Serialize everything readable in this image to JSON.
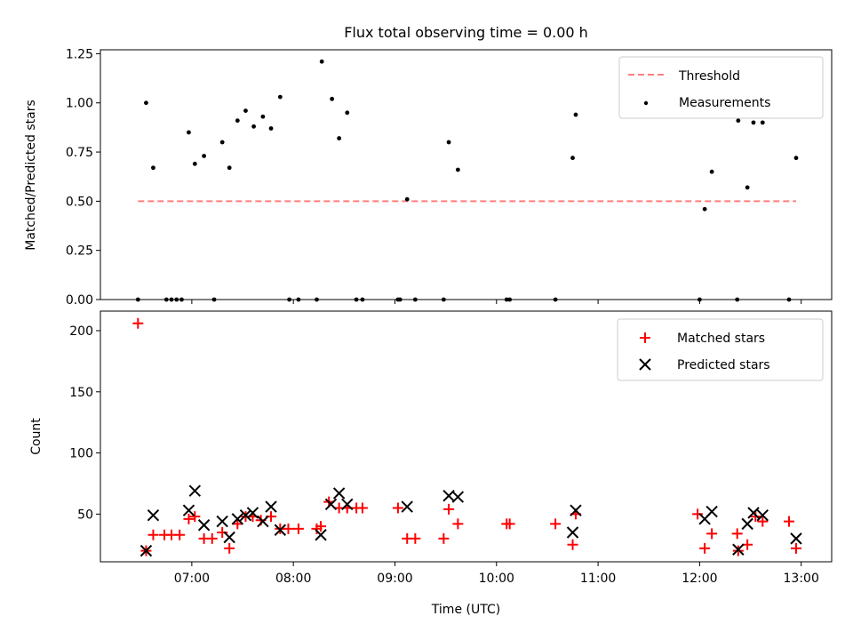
{
  "chart_data": [
    {
      "type": "scatter",
      "title": "Flux total observing time = 0.00 h",
      "xlabel": "",
      "ylabel": "Matched/Predicted stars",
      "ylim": [
        0,
        1.27
      ],
      "yticks": [
        "0.00",
        "0.25",
        "0.50",
        "0.75",
        "1.00",
        "1.25"
      ],
      "xlim_hours": [
        6.1,
        13.3
      ],
      "legend_position": "top-right",
      "threshold": {
        "name": "Threshold",
        "value": 0.5,
        "x_start": 6.47,
        "x_end": 12.95,
        "color": "#ff7f7f"
      },
      "series": [
        {
          "name": "Measurements",
          "color": "#000000",
          "points": [
            [
              6.47,
              0
            ],
            [
              6.55,
              1.0
            ],
            [
              6.62,
              0.67
            ],
            [
              6.75,
              0
            ],
            [
              6.8,
              0
            ],
            [
              6.85,
              0
            ],
            [
              6.9,
              0
            ],
            [
              6.97,
              0.85
            ],
            [
              7.03,
              0.69
            ],
            [
              7.12,
              0.73
            ],
            [
              7.22,
              0
            ],
            [
              7.3,
              0.8
            ],
            [
              7.37,
              0.67
            ],
            [
              7.45,
              0.91
            ],
            [
              7.53,
              0.96
            ],
            [
              7.61,
              0.88
            ],
            [
              7.7,
              0.93
            ],
            [
              7.78,
              0.87
            ],
            [
              7.87,
              1.03
            ],
            [
              7.96,
              0
            ],
            [
              8.05,
              0
            ],
            [
              8.23,
              0
            ],
            [
              8.28,
              1.21
            ],
            [
              8.38,
              1.02
            ],
            [
              8.45,
              0.82
            ],
            [
              8.53,
              0.95
            ],
            [
              8.62,
              0
            ],
            [
              8.68,
              0
            ],
            [
              9.03,
              0
            ],
            [
              9.05,
              0
            ],
            [
              9.12,
              0.51
            ],
            [
              9.2,
              0
            ],
            [
              9.48,
              0
            ],
            [
              9.53,
              0.8
            ],
            [
              9.62,
              0.66
            ],
            [
              10.1,
              0
            ],
            [
              10.13,
              0
            ],
            [
              10.58,
              0
            ],
            [
              10.75,
              0.72
            ],
            [
              10.78,
              0.94
            ],
            [
              12.0,
              0
            ],
            [
              12.05,
              0.46
            ],
            [
              12.12,
              0.65
            ],
            [
              12.37,
              0
            ],
            [
              12.38,
              0.91
            ],
            [
              12.47,
              0.57
            ],
            [
              12.53,
              0.9
            ],
            [
              12.62,
              0.9
            ],
            [
              12.88,
              0
            ],
            [
              12.95,
              0.72
            ]
          ]
        }
      ]
    },
    {
      "type": "scatter",
      "title": "",
      "xlabel": "Time (UTC)",
      "ylabel": "Count",
      "ylim": [
        11,
        216
      ],
      "yticks": [
        "50",
        "100",
        "150",
        "200"
      ],
      "xticks": [
        "07:00",
        "08:00",
        "09:00",
        "10:00",
        "11:00",
        "12:00",
        "13:00"
      ],
      "xlim_hours": [
        6.1,
        13.3
      ],
      "legend_position": "top-right",
      "series": [
        {
          "name": "Matched stars",
          "marker": "plus",
          "color": "#ff0000",
          "points": [
            [
              6.47,
              206
            ],
            [
              6.55,
              20
            ],
            [
              6.62,
              33
            ],
            [
              6.73,
              33
            ],
            [
              6.8,
              33
            ],
            [
              6.88,
              33
            ],
            [
              6.97,
              46
            ],
            [
              7.03,
              48
            ],
            [
              7.12,
              30
            ],
            [
              7.2,
              30
            ],
            [
              7.3,
              35
            ],
            [
              7.37,
              22
            ],
            [
              7.45,
              42
            ],
            [
              7.53,
              48
            ],
            [
              7.6,
              48
            ],
            [
              7.68,
              45
            ],
            [
              7.78,
              48
            ],
            [
              7.87,
              38
            ],
            [
              7.95,
              38
            ],
            [
              8.05,
              38
            ],
            [
              8.23,
              38
            ],
            [
              8.27,
              40
            ],
            [
              8.35,
              60
            ],
            [
              8.45,
              55
            ],
            [
              8.53,
              55
            ],
            [
              8.62,
              55
            ],
            [
              8.68,
              55
            ],
            [
              9.03,
              55
            ],
            [
              9.12,
              30
            ],
            [
              9.2,
              30
            ],
            [
              9.48,
              30
            ],
            [
              9.53,
              54
            ],
            [
              9.62,
              42
            ],
            [
              10.1,
              42
            ],
            [
              10.13,
              42
            ],
            [
              10.58,
              42
            ],
            [
              10.75,
              25
            ],
            [
              10.78,
              50
            ],
            [
              11.98,
              50
            ],
            [
              12.05,
              22
            ],
            [
              12.12,
              34
            ],
            [
              12.37,
              34
            ],
            [
              12.38,
              20
            ],
            [
              12.47,
              25
            ],
            [
              12.55,
              48
            ],
            [
              12.62,
              44
            ],
            [
              12.88,
              44
            ],
            [
              12.95,
              22
            ]
          ]
        },
        {
          "name": "Predicted stars",
          "marker": "x",
          "color": "#000000",
          "points": [
            [
              6.55,
              20
            ],
            [
              6.62,
              49
            ],
            [
              6.97,
              53
            ],
            [
              7.03,
              69
            ],
            [
              7.12,
              41
            ],
            [
              7.3,
              44
            ],
            [
              7.37,
              31
            ],
            [
              7.45,
              46
            ],
            [
              7.53,
              49
            ],
            [
              7.6,
              51
            ],
            [
              7.7,
              44
            ],
            [
              7.78,
              56
            ],
            [
              7.87,
              37
            ],
            [
              8.27,
              33
            ],
            [
              8.37,
              58
            ],
            [
              8.45,
              67
            ],
            [
              8.53,
              58
            ],
            [
              9.12,
              56
            ],
            [
              9.53,
              65
            ],
            [
              9.62,
              64
            ],
            [
              10.75,
              35
            ],
            [
              10.78,
              53
            ],
            [
              12.05,
              46
            ],
            [
              12.12,
              52
            ],
            [
              12.38,
              21
            ],
            [
              12.47,
              42
            ],
            [
              12.53,
              51
            ],
            [
              12.62,
              49
            ],
            [
              12.95,
              30
            ]
          ]
        }
      ]
    }
  ]
}
